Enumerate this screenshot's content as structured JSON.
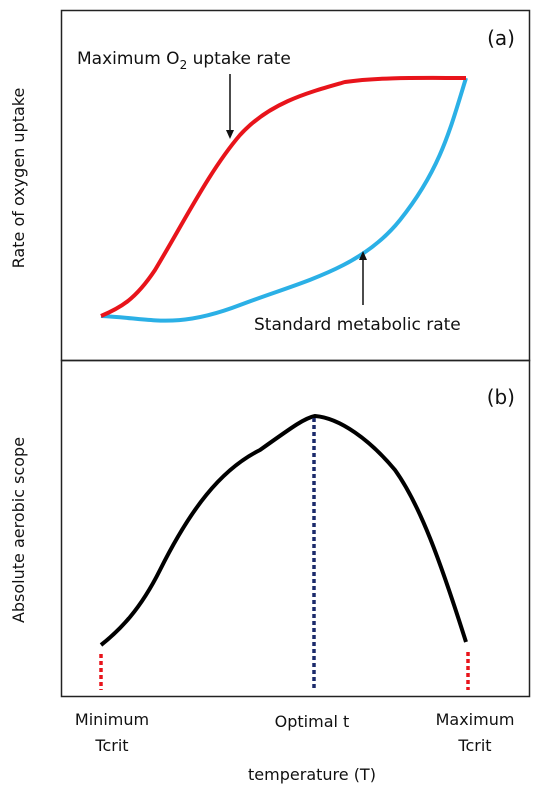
{
  "panel_a": {
    "label": "(a)",
    "ylabel": "Rate of oxygen uptake",
    "annotation_max": {
      "prefix": "Maximum O",
      "subscript": "2",
      "suffix": " uptake rate"
    },
    "annotation_smr": "Standard metabolic rate",
    "colors": {
      "max_curve": "#e8141b",
      "smr_curve": "#2bb0e6"
    }
  },
  "panel_b": {
    "label": "(b)",
    "ylabel": "Absolute aerobic scope",
    "colors": {
      "curve": "#000000",
      "crit_lines": "#e8141b",
      "optimal_line": "#1b2a6b"
    }
  },
  "xaxis": {
    "min_label": [
      "Minimum",
      "Tcrit"
    ],
    "opt_label": "Optimal t",
    "max_label": [
      "Maximum",
      "Tcrit"
    ],
    "title": "temperature (T)"
  }
}
